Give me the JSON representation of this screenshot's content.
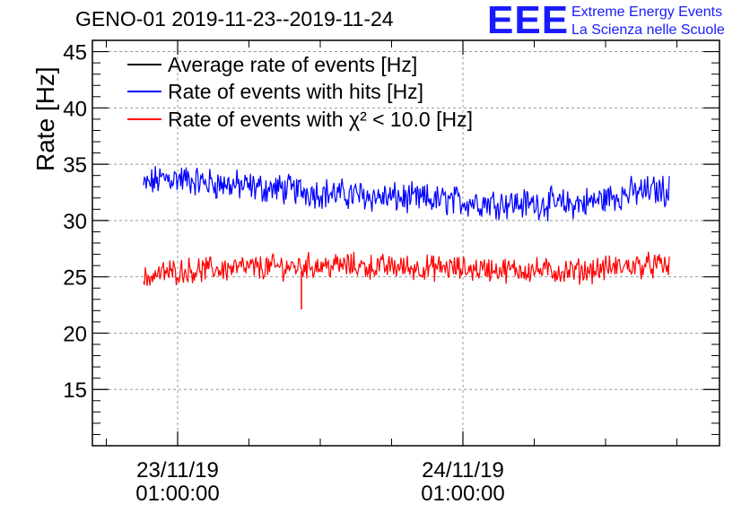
{
  "header": {
    "title": "GENO-01 2019-11-23--2019-11-24",
    "logo": "EEE",
    "logo_line1": "Extreme Energy Events",
    "logo_line2": "La Scienza nelle Scuole"
  },
  "chart_data": {
    "type": "line",
    "ylabel": "Rate [Hz]",
    "xlabel": "",
    "ylim": [
      10,
      46
    ],
    "yticks": [
      15,
      20,
      25,
      30,
      35,
      40,
      45
    ],
    "xticks": [
      {
        "date": "23/11/19",
        "time": "01:00:00"
      },
      {
        "date": "24/11/19",
        "time": "01:00:00"
      }
    ],
    "grid": true,
    "legend_position": "top-left",
    "series": [
      {
        "name": "Average rate of events [Hz]",
        "color": "#000000",
        "values": []
      },
      {
        "name": "Rate of events with hits [Hz]",
        "color": "#0000ff",
        "x": [
          0.0,
          1.0,
          2.0,
          3.0,
          4.0,
          5.0,
          6.0,
          7.0,
          8.0,
          9.0,
          10.0,
          11.0,
          12.0,
          13.0,
          14.0,
          15.0,
          16.0,
          17.0,
          18.0,
          19.0,
          20.0,
          21.0,
          22.0,
          23.0,
          24.0,
          25.0,
          26.0,
          27.0,
          28.0,
          29.0,
          30.0,
          31.0,
          32.0,
          33.0,
          34.0,
          35.0,
          36.0,
          37.0,
          38.0,
          39.0,
          40.0,
          41.0,
          42.0,
          43.0,
          44.0,
          45.0
        ],
        "values": [
          33.0,
          33.5,
          33.8,
          33.7,
          33.6,
          33.4,
          33.3,
          33.2,
          33.1,
          33.0,
          32.9,
          32.8,
          32.8,
          32.7,
          32.6,
          32.5,
          32.4,
          32.3,
          32.3,
          32.2,
          32.1,
          32.0,
          32.0,
          31.9,
          31.9,
          31.8,
          31.8,
          31.7,
          31.7,
          31.6,
          31.6,
          31.6,
          31.5,
          31.5,
          31.5,
          31.5,
          31.4,
          31.5,
          31.6,
          31.8,
          32.1,
          32.3,
          32.5,
          32.6,
          32.7,
          32.7
        ]
      },
      {
        "name": "Rate of events with χ² < 10.0 [Hz]",
        "color": "#ff0000",
        "x": [
          0.0,
          1.0,
          2.0,
          3.0,
          4.0,
          5.0,
          6.0,
          7.0,
          8.0,
          9.0,
          10.0,
          11.0,
          12.0,
          13.0,
          14.0,
          15.0,
          16.0,
          17.0,
          18.0,
          19.0,
          20.0,
          21.0,
          22.0,
          23.0,
          24.0,
          25.0,
          26.0,
          27.0,
          28.0,
          29.0,
          30.0,
          31.0,
          32.0,
          33.0,
          34.0,
          35.0,
          36.0,
          37.0,
          38.0,
          39.0,
          40.0,
          41.0,
          42.0,
          43.0,
          44.0,
          45.0
        ],
        "values": [
          24.8,
          25.2,
          25.4,
          25.5,
          25.6,
          25.6,
          25.7,
          25.7,
          25.8,
          25.8,
          25.8,
          25.9,
          25.9,
          25.9,
          26.0,
          26.0,
          26.0,
          26.0,
          26.0,
          25.9,
          25.9,
          25.9,
          25.9,
          25.8,
          25.8,
          25.8,
          25.8,
          25.7,
          25.7,
          25.7,
          25.7,
          25.6,
          25.6,
          25.6,
          25.6,
          25.5,
          25.5,
          25.5,
          25.6,
          25.7,
          25.8,
          25.9,
          26.0,
          26.0,
          26.0,
          25.9
        ]
      }
    ]
  }
}
